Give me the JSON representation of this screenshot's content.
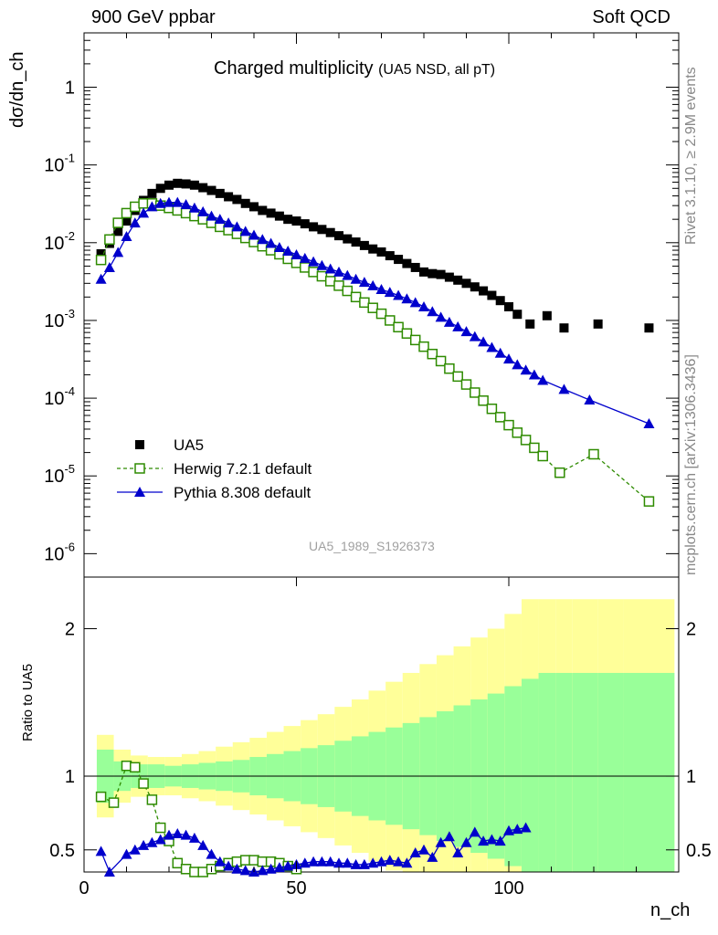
{
  "header": {
    "left": "900 GeV ppbar",
    "right": "Soft QCD"
  },
  "side_labels": {
    "upper": "Rivet 3.1.10, ≥ 2.9M events",
    "lower": "mcplots.cern.ch [arXiv:1306.3436]"
  },
  "chart_data": {
    "type": "scatter",
    "title": "Charged multiplicity",
    "subtitle": "(UA5 NSD, all pT)",
    "analysis_tag": "UA5_1989_S1926373",
    "xlabel": "n_ch",
    "ylabel": "dσ/dn_ch",
    "ratio_ylabel": "Ratio to UA5",
    "xlim": [
      0,
      140
    ],
    "ylim": [
      5e-07,
      5
    ],
    "yscale": "log",
    "ratio_ylim": [
      0.35,
      2.35
    ],
    "x_ticks": [
      "0",
      "50",
      "100"
    ],
    "y_ticks": [
      "10^-6",
      "10^-5",
      "10^-4",
      "10^-3",
      "10^-2",
      "10^-1",
      "1"
    ],
    "ratio_ticks": [
      "0.5",
      "1",
      "2"
    ],
    "legend_position": "bottom-left",
    "series": [
      {
        "name": "UA5",
        "style": "data",
        "color": "#000000",
        "x": [
          4,
          6,
          8,
          10,
          12,
          14,
          16,
          18,
          20,
          22,
          24,
          26,
          28,
          30,
          32,
          34,
          36,
          38,
          40,
          42,
          44,
          46,
          48,
          50,
          52,
          54,
          56,
          58,
          60,
          62,
          64,
          66,
          68,
          70,
          72,
          74,
          76,
          78,
          80,
          82,
          84,
          86,
          88,
          90,
          92,
          94,
          96,
          98,
          100,
          102,
          105,
          109,
          113,
          121,
          133
        ],
        "y": [
          0.0072,
          0.0098,
          0.014,
          0.019,
          0.026,
          0.035,
          0.043,
          0.05,
          0.055,
          0.058,
          0.057,
          0.055,
          0.051,
          0.047,
          0.043,
          0.039,
          0.036,
          0.032,
          0.029,
          0.026,
          0.024,
          0.022,
          0.02,
          0.019,
          0.0175,
          0.016,
          0.0148,
          0.0135,
          0.0123,
          0.0112,
          0.0102,
          0.0092,
          0.0083,
          0.0076,
          0.0068,
          0.0061,
          0.0054,
          0.0048,
          0.0042,
          0.004,
          0.0039,
          0.0036,
          0.0033,
          0.003,
          0.0027,
          0.0024,
          0.0021,
          0.0018,
          0.0015,
          0.0012,
          0.0009,
          0.00115,
          0.0008,
          0.0009,
          0.0008
        ]
      },
      {
        "name": "Herwig 7.2.1 default",
        "style": "open-square-dashed",
        "color": "#2e8b00",
        "x": [
          4,
          6,
          8,
          10,
          12,
          14,
          16,
          18,
          20,
          22,
          24,
          26,
          28,
          30,
          32,
          34,
          36,
          38,
          40,
          42,
          44,
          46,
          48,
          50,
          52,
          54,
          56,
          58,
          60,
          62,
          64,
          66,
          68,
          70,
          72,
          74,
          76,
          78,
          80,
          82,
          84,
          86,
          88,
          90,
          92,
          94,
          96,
          98,
          100,
          102,
          104,
          106,
          108,
          112,
          120,
          133
        ],
        "ratio_x": [
          4,
          7,
          10,
          12,
          14,
          16,
          18,
          20,
          22,
          24,
          26,
          28,
          30,
          32,
          34,
          36,
          38,
          40,
          42,
          44,
          46,
          48,
          50
        ],
        "ratio_y": [
          0.86,
          0.82,
          1.07,
          1.06,
          0.95,
          0.84,
          0.65,
          0.56,
          0.41,
          0.37,
          0.35,
          0.35,
          0.37,
          0.39,
          0.41,
          0.42,
          0.43,
          0.43,
          0.42,
          0.42,
          0.41,
          0.39,
          0.37
        ],
        "y": [
          0.006,
          0.011,
          0.018,
          0.024,
          0.029,
          0.032,
          0.032,
          0.03,
          0.028,
          0.026,
          0.024,
          0.022,
          0.02,
          0.018,
          0.016,
          0.0145,
          0.013,
          0.0115,
          0.0102,
          0.009,
          0.008,
          0.0071,
          0.0062,
          0.0055,
          0.0048,
          0.0042,
          0.0037,
          0.0032,
          0.0028,
          0.0024,
          0.002,
          0.0017,
          0.00145,
          0.00122,
          0.001,
          0.00082,
          0.00068,
          0.00056,
          0.00046,
          0.00037,
          0.0003,
          0.00024,
          0.00019,
          0.00015,
          0.000118,
          9.3e-05,
          7.3e-05,
          5.7e-05,
          4.5e-05,
          3.6e-05,
          2.9e-05,
          2.3e-05,
          1.8e-05,
          1.1e-05,
          1.9e-05,
          4.7e-06
        ]
      },
      {
        "name": "Pythia 8.308 default",
        "style": "filled-triangle-solid",
        "color": "#0000cc",
        "x": [
          4,
          6,
          8,
          10,
          12,
          14,
          16,
          18,
          20,
          22,
          24,
          26,
          28,
          30,
          32,
          34,
          36,
          38,
          40,
          42,
          44,
          46,
          48,
          50,
          52,
          54,
          56,
          58,
          60,
          62,
          64,
          66,
          68,
          70,
          72,
          74,
          76,
          78,
          80,
          82,
          84,
          86,
          88,
          90,
          92,
          94,
          96,
          98,
          100,
          102,
          104,
          106,
          108,
          113,
          119,
          133
        ],
        "ratio_x": [
          4,
          6,
          10,
          12,
          14,
          16,
          18,
          20,
          22,
          24,
          26,
          28,
          30,
          32,
          34,
          36,
          38,
          40,
          42,
          44,
          46,
          48,
          50,
          52,
          54,
          56,
          58,
          60,
          62,
          64,
          66,
          68,
          70,
          72,
          74,
          76,
          78,
          80,
          82,
          84,
          86,
          88,
          90,
          92,
          94,
          96,
          98,
          100,
          102,
          104
        ],
        "ratio_y": [
          0.49,
          0.35,
          0.47,
          0.5,
          0.53,
          0.55,
          0.57,
          0.6,
          0.61,
          0.6,
          0.58,
          0.53,
          0.47,
          0.42,
          0.39,
          0.37,
          0.36,
          0.35,
          0.36,
          0.37,
          0.38,
          0.39,
          0.4,
          0.41,
          0.42,
          0.42,
          0.42,
          0.41,
          0.41,
          0.4,
          0.4,
          0.41,
          0.42,
          0.43,
          0.42,
          0.41,
          0.48,
          0.5,
          0.45,
          0.55,
          0.59,
          0.48,
          0.55,
          0.62,
          0.56,
          0.57,
          0.56,
          0.63,
          0.64,
          0.65
        ],
        "y": [
          0.0034,
          0.0048,
          0.0075,
          0.012,
          0.018,
          0.024,
          0.029,
          0.032,
          0.033,
          0.033,
          0.031,
          0.028,
          0.025,
          0.022,
          0.02,
          0.018,
          0.016,
          0.014,
          0.0125,
          0.011,
          0.0098,
          0.0087,
          0.0078,
          0.007,
          0.0063,
          0.0057,
          0.0051,
          0.0046,
          0.0042,
          0.0038,
          0.0034,
          0.0031,
          0.0028,
          0.0025,
          0.0023,
          0.0021,
          0.0019,
          0.0017,
          0.0015,
          0.0013,
          0.0011,
          0.00095,
          0.00083,
          0.00072,
          0.00062,
          0.00053,
          0.00045,
          0.00038,
          0.00032,
          0.00027,
          0.00023,
          0.0002,
          0.00017,
          0.00013,
          9.5e-05,
          4.7e-05
        ]
      }
    ],
    "ratio_band": {
      "edges": [
        3,
        7,
        11,
        15,
        19,
        23,
        27,
        31,
        35,
        39,
        43,
        47,
        51,
        55,
        59,
        63,
        67,
        71,
        75,
        79,
        83,
        87,
        91,
        95,
        99,
        103,
        107,
        111,
        115,
        121,
        127,
        139
      ],
      "inner": [
        1.18,
        1.1,
        1.08,
        1.08,
        1.07,
        1.08,
        1.09,
        1.1,
        1.11,
        1.13,
        1.15,
        1.17,
        1.19,
        1.21,
        1.24,
        1.27,
        1.3,
        1.33,
        1.36,
        1.4,
        1.44,
        1.48,
        1.52,
        1.56,
        1.61,
        1.66,
        1.7,
        1.7,
        1.7,
        1.7,
        1.7
      ],
      "outer": [
        1.28,
        1.18,
        1.14,
        1.13,
        1.13,
        1.15,
        1.17,
        1.2,
        1.23,
        1.26,
        1.3,
        1.34,
        1.38,
        1.42,
        1.47,
        1.52,
        1.58,
        1.64,
        1.7,
        1.76,
        1.82,
        1.88,
        1.94,
        2.0,
        2.1,
        2.2,
        2.2,
        2.2,
        2.2,
        2.2,
        2.2
      ]
    }
  }
}
